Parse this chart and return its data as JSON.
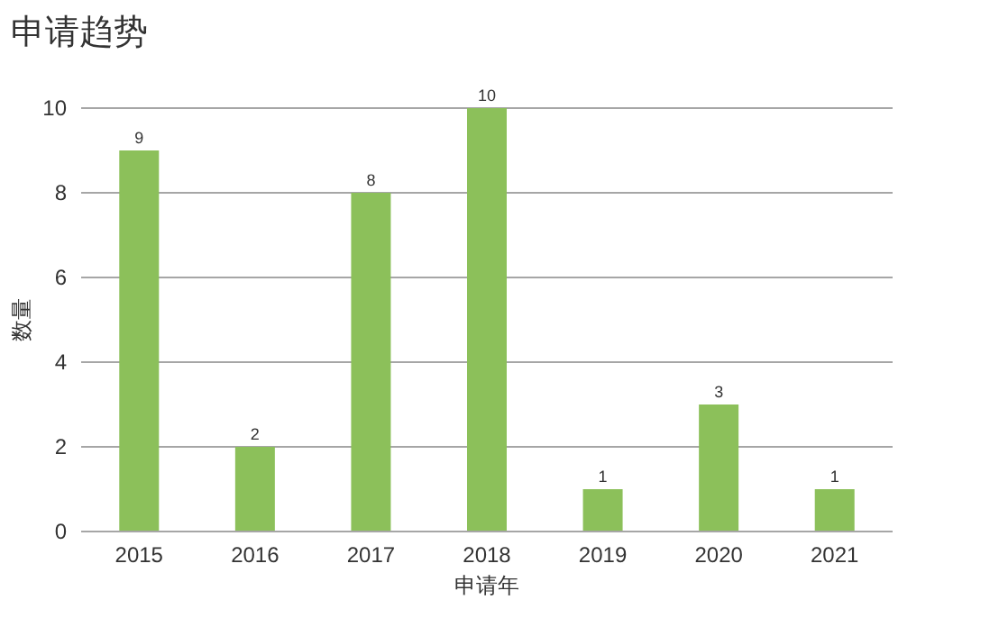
{
  "chart_data": {
    "type": "bar",
    "title": "申请趋势",
    "xlabel": "申请年",
    "ylabel": "数量",
    "categories": [
      "2015",
      "2016",
      "2017",
      "2018",
      "2019",
      "2020",
      "2021"
    ],
    "values": [
      9,
      2,
      8,
      10,
      1,
      3,
      1
    ],
    "color": "#8cc05a",
    "ylim": [
      0,
      10
    ],
    "yticks": [
      0,
      2,
      4,
      6,
      8,
      10
    ],
    "grid": "y",
    "data_labels": true
  }
}
